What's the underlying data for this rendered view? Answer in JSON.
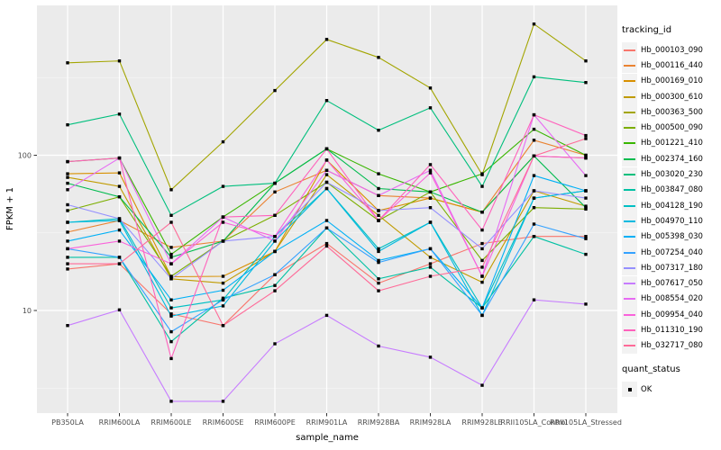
{
  "figure": {
    "x_axis_title": "sample_name",
    "y_axis_title": "FPKM + 1"
  },
  "legend": {
    "tracking_title": "tracking_id",
    "quant_title": "quant_status",
    "quant_label": "OK"
  },
  "chart_data": {
    "type": "line",
    "title": "",
    "xlabel": "sample_name",
    "ylabel": "FPKM + 1",
    "x_type": "categorical",
    "y_scale": "log10",
    "ylim": [
      2.1,
      900
    ],
    "y_ticks": [
      100,
      10
    ],
    "y_minor_ticks": [
      316.23,
      31.623,
      3.1623
    ],
    "grid": "white major and minor gridlines on grey panel",
    "legend_position": "right",
    "panel_bg": "#EBEBEB",
    "point_color": "#000000",
    "point_shape": "square",
    "quant_status": {
      "title": "quant_status",
      "values": [
        "OK"
      ]
    },
    "categories": [
      "PB350LA",
      "RRIM600LA",
      "RRIM600LE",
      "RRIM600SE",
      "RRIM600PE",
      "RRIM901LA",
      "RRIM928BA",
      "RRIM928LA",
      "RRIM928LE",
      "RRII105LA_Control",
      "RRII105LA_Stressed"
    ],
    "series": [
      {
        "name": "Hb_000103_090",
        "color": "#F8766D",
        "values": [
          18.5,
          20,
          9.5,
          8,
          17,
          27,
          15,
          20,
          27,
          30,
          30
        ]
      },
      {
        "name": "Hb_000116_440",
        "color": "#EA8331",
        "values": [
          32,
          38,
          25.5,
          28,
          58,
          80,
          55,
          53,
          43,
          125,
          100
        ]
      },
      {
        "name": "Hb_000169_010",
        "color": "#D89000",
        "values": [
          76,
          77,
          16.5,
          16.6,
          24,
          93,
          44,
          53,
          43,
          99,
          96
        ]
      },
      {
        "name": "Hb_000300_610",
        "color": "#C09B00",
        "values": [
          72,
          63,
          16,
          15,
          24,
          75,
          41,
          22,
          15.2,
          59,
          47
        ]
      },
      {
        "name": "Hb_000363_500",
        "color": "#A3A500",
        "values": [
          394,
          405,
          60,
          122,
          261,
          557,
          427,
          271,
          75,
          700,
          405
        ]
      },
      {
        "name": "Hb_000500_090",
        "color": "#7CAE00",
        "values": [
          44,
          54,
          16.6,
          28,
          41,
          67,
          38,
          58,
          21,
          46,
          45
        ]
      },
      {
        "name": "Hb_001221_410",
        "color": "#39B600",
        "values": [
          91,
          96,
          23,
          40,
          66,
          110,
          76,
          58,
          76,
          147,
          100
        ]
      },
      {
        "name": "Hb_002374_160",
        "color": "#00BB4E",
        "values": [
          66,
          54,
          22,
          28,
          66,
          110,
          61,
          58,
          43,
          99,
          46
        ]
      },
      {
        "name": "Hb_003020_230",
        "color": "#00BF7D",
        "values": [
          157,
          184,
          41,
          63,
          66,
          225,
          145,
          202,
          63,
          320,
          294
        ]
      },
      {
        "name": "Hb_003847_080",
        "color": "#00C1A3",
        "values": [
          22,
          22,
          6.3,
          12,
          14.5,
          34,
          16,
          19,
          10.4,
          30,
          23
        ]
      },
      {
        "name": "Hb_004128_190",
        "color": "#00BFC4",
        "values": [
          37,
          39,
          10.4,
          11.7,
          30,
          61,
          25,
          37,
          10.4,
          53,
          59
        ]
      },
      {
        "name": "Hb_004970_110",
        "color": "#00BAE0",
        "values": [
          37,
          38,
          9.2,
          10.7,
          28,
          61,
          24,
          37,
          9.3,
          53,
          59
        ]
      },
      {
        "name": "Hb_005398_030",
        "color": "#00B0F6",
        "values": [
          28,
          33,
          11.7,
          13.5,
          24,
          38,
          21,
          25,
          10.4,
          74,
          59
        ]
      },
      {
        "name": "Hb_007254_040",
        "color": "#35A2FF",
        "values": [
          25,
          22,
          7.3,
          11.7,
          17,
          34,
          20.4,
          25,
          9.3,
          36,
          29
        ]
      },
      {
        "name": "Hb_007317_180",
        "color": "#9590FF",
        "values": [
          48,
          39,
          16,
          28,
          30,
          67,
          44,
          46,
          25,
          59,
          53
        ]
      },
      {
        "name": "Hb_007617_050",
        "color": "#C77CFF",
        "values": [
          8,
          10.1,
          2.6,
          2.6,
          6.1,
          9.3,
          5.9,
          5,
          3.3,
          11.7,
          11
        ]
      },
      {
        "name": "Hb_008554_020",
        "color": "#E76BF3",
        "values": [
          60,
          96,
          20,
          40,
          28,
          80,
          55,
          80,
          16.6,
          182,
          74
        ]
      },
      {
        "name": "Hb_009954_040",
        "color": "#FA62DB",
        "values": [
          25,
          28,
          20,
          37,
          30,
          93,
          38,
          77,
          16.6,
          99,
          96
        ]
      },
      {
        "name": "Hb_011310_190",
        "color": "#FF62BC",
        "values": [
          91,
          96,
          4.9,
          40,
          41,
          110,
          38,
          87,
          33,
          182,
          134
        ]
      },
      {
        "name": "Hb_032717_080",
        "color": "#FF6A98",
        "values": [
          20,
          20,
          37,
          8,
          13.4,
          26,
          13.4,
          16.6,
          19,
          99,
          128
        ]
      }
    ]
  }
}
